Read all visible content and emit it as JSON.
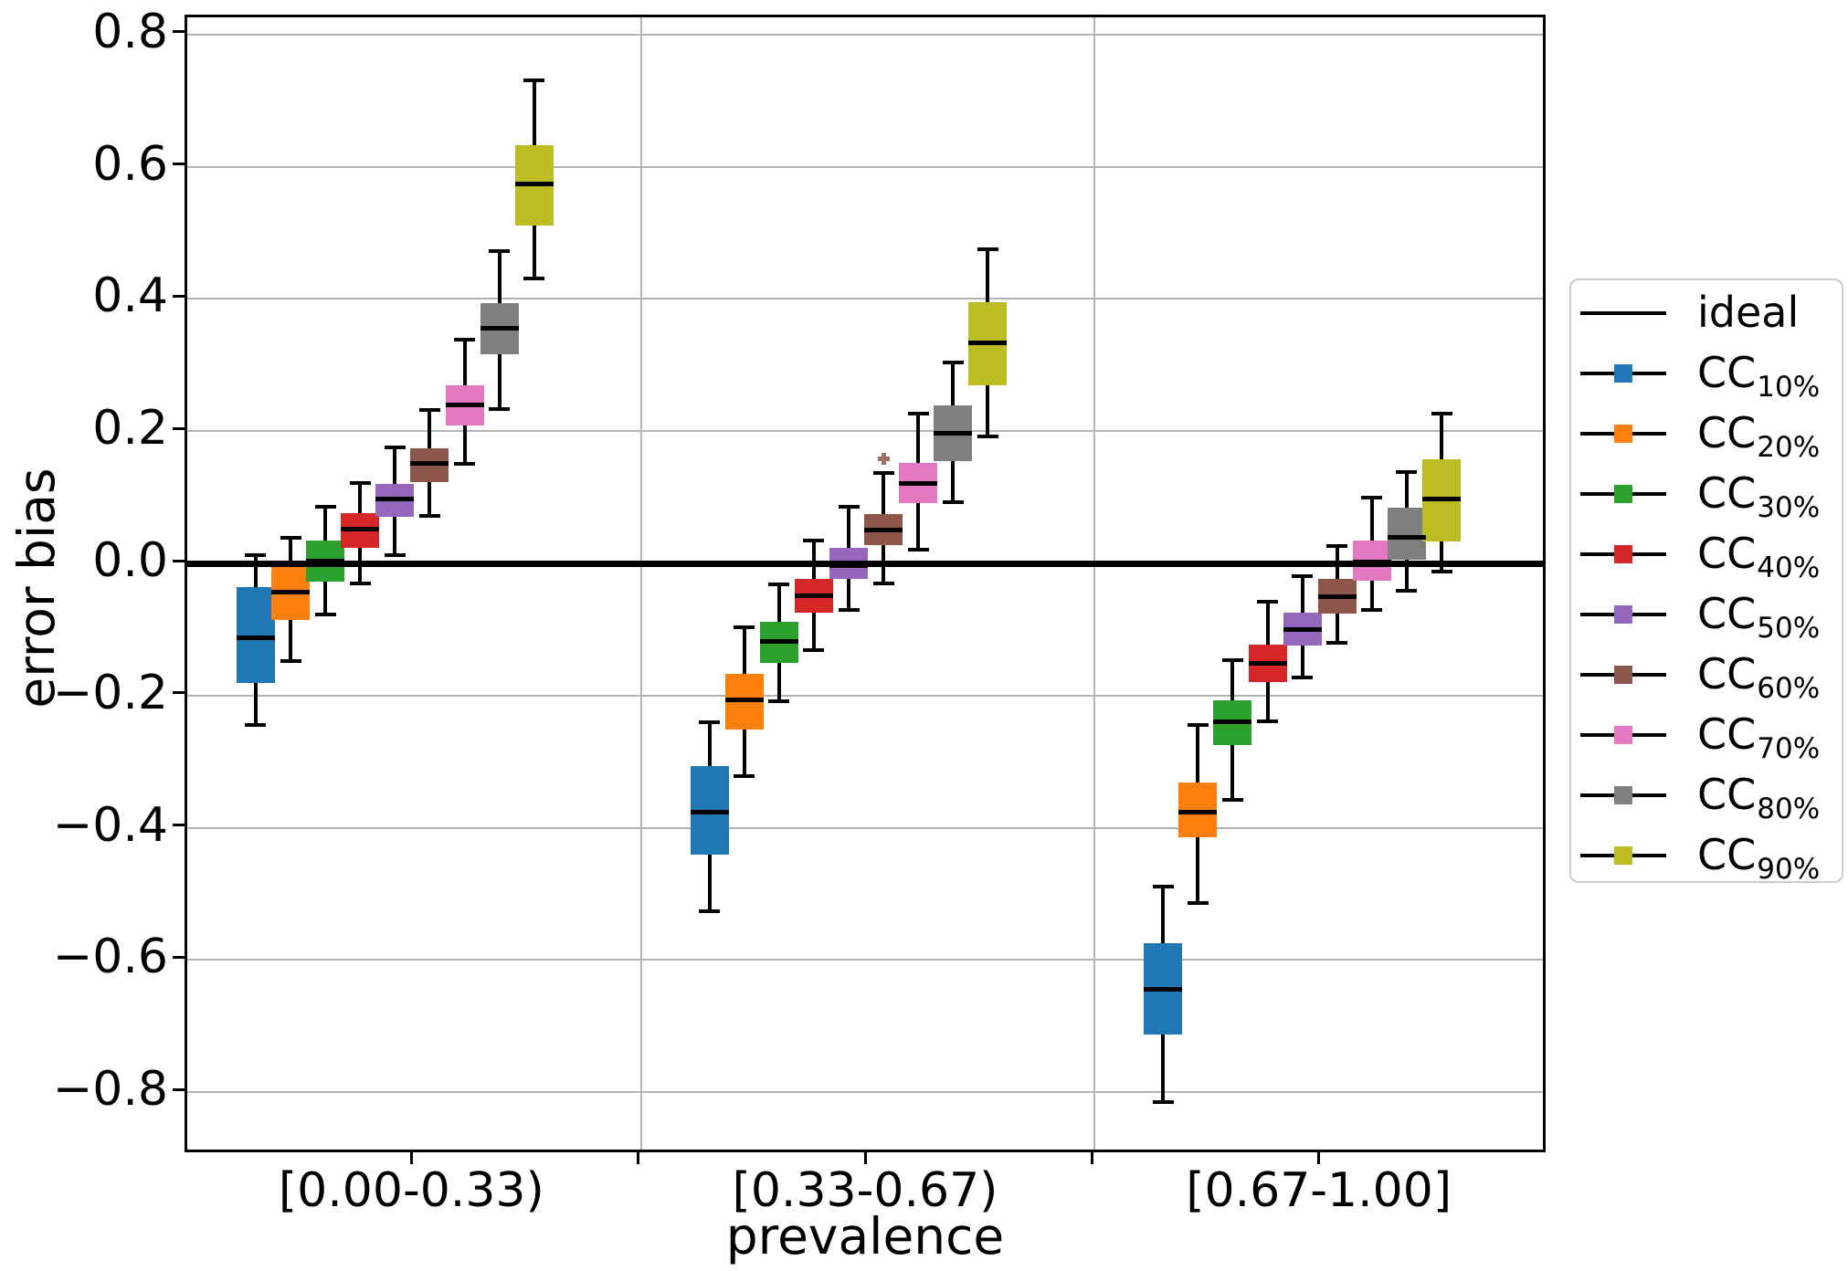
{
  "chart_data": {
    "type": "boxplot",
    "title": "",
    "xlabel": "prevalence",
    "ylabel": "error bias",
    "ylim": [
      -0.895,
      0.826
    ],
    "grid": true,
    "legend_position": "right",
    "ideal_label": "ideal",
    "ideal_value": 0.0,
    "x_ticks": [
      "[0.00-0.33)",
      "[0.33-0.67)",
      "[0.67-1.00]"
    ],
    "groups": [
      "[0.00-0.33)",
      "[0.33-0.67)",
      "[0.67-1.00]"
    ],
    "y_ticks": [
      {
        "value": 0.8,
        "label": "0.8"
      },
      {
        "value": 0.6,
        "label": "0.6"
      },
      {
        "value": 0.4,
        "label": "0.4"
      },
      {
        "value": 0.2,
        "label": "0.2"
      },
      {
        "value": 0.0,
        "label": "0.0"
      },
      {
        "value": -0.2,
        "label": "−0.2"
      },
      {
        "value": -0.4,
        "label": "−0.4"
      },
      {
        "value": -0.6,
        "label": "−0.6"
      },
      {
        "value": -0.8,
        "label": "−0.8"
      }
    ],
    "series": [
      {
        "label": "CC",
        "sublabel": "10%",
        "color": "#1f77b4",
        "boxes": [
          {
            "whislo": -0.245,
            "q1": -0.181,
            "med": -0.113,
            "q3": -0.036,
            "whishi": 0.012,
            "fliers": []
          },
          {
            "whislo": -0.526,
            "q1": -0.441,
            "med": -0.377,
            "q3": -0.306,
            "whishi": -0.24,
            "fliers": []
          },
          {
            "whislo": -0.815,
            "q1": -0.713,
            "med": -0.645,
            "q3": -0.575,
            "whishi": -0.489,
            "fliers": []
          }
        ]
      },
      {
        "label": "CC",
        "sublabel": "20%",
        "color": "#ff7f0e",
        "boxes": [
          {
            "whislo": -0.148,
            "q1": -0.086,
            "med": -0.044,
            "q3": -0.002,
            "whishi": 0.038,
            "fliers": []
          },
          {
            "whislo": -0.322,
            "q1": -0.251,
            "med": -0.207,
            "q3": -0.167,
            "whishi": -0.096,
            "fliers": []
          },
          {
            "whislo": -0.514,
            "q1": -0.415,
            "med": -0.376,
            "q3": -0.332,
            "whishi": -0.245,
            "fliers": []
          }
        ]
      },
      {
        "label": "CC",
        "sublabel": "30%",
        "color": "#2ca02c",
        "boxes": [
          {
            "whislo": -0.078,
            "q1": -0.028,
            "med": 0.003,
            "q3": 0.035,
            "whishi": 0.086,
            "fliers": []
          },
          {
            "whislo": -0.208,
            "q1": -0.15,
            "med": -0.118,
            "q3": -0.088,
            "whishi": -0.032,
            "fliers": []
          },
          {
            "whislo": -0.358,
            "q1": -0.275,
            "med": -0.24,
            "q3": -0.207,
            "whishi": -0.147,
            "fliers": []
          }
        ]
      },
      {
        "label": "CC",
        "sublabel": "40%",
        "color": "#d62728",
        "boxes": [
          {
            "whislo": -0.031,
            "q1": 0.024,
            "med": 0.052,
            "q3": 0.076,
            "whishi": 0.122,
            "fliers": []
          },
          {
            "whislo": -0.131,
            "q1": -0.074,
            "med": -0.049,
            "q3": -0.023,
            "whishi": 0.035,
            "fliers": []
          },
          {
            "whislo": -0.239,
            "q1": -0.18,
            "med": -0.151,
            "q3": -0.123,
            "whishi": -0.058,
            "fliers": []
          }
        ]
      },
      {
        "label": "CC",
        "sublabel": "50%",
        "color": "#9467bd",
        "boxes": [
          {
            "whislo": 0.012,
            "q1": 0.071,
            "med": 0.097,
            "q3": 0.12,
            "whishi": 0.175,
            "fliers": []
          },
          {
            "whislo": -0.071,
            "q1": -0.024,
            "med": -0.004,
            "q3": 0.023,
            "whishi": 0.085,
            "fliers": []
          },
          {
            "whislo": -0.172,
            "q1": -0.124,
            "med": -0.1,
            "q3": -0.075,
            "whishi": -0.019,
            "fliers": []
          }
        ]
      },
      {
        "label": "CC",
        "sublabel": "60%",
        "color": "#8c564b",
        "boxes": [
          {
            "whislo": 0.072,
            "q1": 0.123,
            "med": 0.151,
            "q3": 0.174,
            "whishi": 0.232,
            "fliers": []
          },
          {
            "whislo": -0.031,
            "q1": 0.027,
            "med": 0.05,
            "q3": 0.075,
            "whishi": 0.137,
            "fliers": [
              0.158
            ]
          },
          {
            "whislo": -0.12,
            "q1": -0.076,
            "med": -0.051,
            "q3": -0.023,
            "whishi": 0.026,
            "fliers": []
          }
        ]
      },
      {
        "label": "CC",
        "sublabel": "70%",
        "color": "#e377c2",
        "boxes": [
          {
            "whislo": 0.151,
            "q1": 0.208,
            "med": 0.239,
            "q3": 0.269,
            "whishi": 0.338,
            "fliers": []
          },
          {
            "whislo": 0.021,
            "q1": 0.091,
            "med": 0.121,
            "q3": 0.152,
            "whishi": 0.226,
            "fliers": []
          },
          {
            "whislo": -0.07,
            "q1": -0.026,
            "med": 0.002,
            "q3": 0.035,
            "whishi": 0.099,
            "fliers": []
          }
        ]
      },
      {
        "label": "CC",
        "sublabel": "80%",
        "color": "#7f7f7f",
        "boxes": [
          {
            "whislo": 0.234,
            "q1": 0.316,
            "med": 0.356,
            "q3": 0.393,
            "whishi": 0.472,
            "fliers": []
          },
          {
            "whislo": 0.092,
            "q1": 0.155,
            "med": 0.197,
            "q3": 0.239,
            "whishi": 0.304,
            "fliers": []
          },
          {
            "whislo": -0.041,
            "q1": 0.006,
            "med": 0.04,
            "q3": 0.084,
            "whishi": 0.138,
            "fliers": []
          }
        ]
      },
      {
        "label": "CC",
        "sublabel": "90%",
        "color": "#bcbd22",
        "boxes": [
          {
            "whislo": 0.431,
            "q1": 0.511,
            "med": 0.574,
            "q3": 0.632,
            "whishi": 0.73,
            "fliers": []
          },
          {
            "whislo": 0.192,
            "q1": 0.27,
            "med": 0.334,
            "q3": 0.395,
            "whishi": 0.475,
            "fliers": []
          },
          {
            "whislo": -0.012,
            "q1": 0.033,
            "med": 0.097,
            "q3": 0.158,
            "whishi": 0.226,
            "fliers": []
          }
        ]
      }
    ]
  }
}
